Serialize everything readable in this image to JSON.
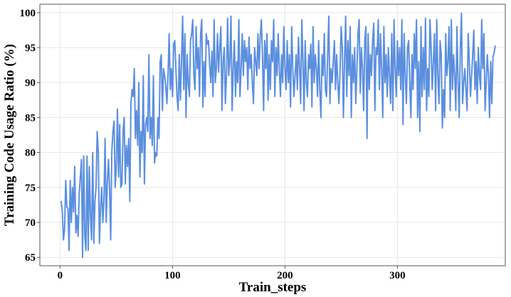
{
  "chart_data": {
    "type": "line",
    "title": "",
    "xlabel": "Train_steps",
    "ylabel": "Training Code Usage Ratio (%)",
    "xlim": [
      -18,
      396
    ],
    "ylim": [
      63.8,
      101.2
    ],
    "grid": true,
    "legend": "none",
    "x_ticks": [
      0,
      100,
      200,
      300
    ],
    "x_tick_labels": [
      "0",
      "100",
      "200",
      "300"
    ],
    "y_ticks": [
      65,
      70,
      75,
      80,
      85,
      90,
      95,
      100
    ],
    "y_tick_labels": [
      "65",
      "70",
      "75",
      "80",
      "85",
      "90",
      "95",
      "100"
    ],
    "series": [
      {
        "color": "#5b8fde",
        "x_start": 1,
        "x_step": 1,
        "y": [
          73.0,
          71.5,
          67.5,
          69.0,
          76.0,
          72.2,
          72.0,
          66.0,
          76.0,
          70.0,
          75.0,
          71.5,
          78.0,
          68.5,
          71.0,
          68.0,
          74.0,
          76.5,
          79.0,
          65.0,
          79.5,
          68.0,
          66.0,
          79.5,
          66.0,
          78.0,
          71.0,
          67.5,
          80.0,
          67.0,
          73.0,
          75.0,
          83.0,
          80.0,
          67.0,
          72.0,
          75.0,
          70.0,
          73.0,
          82.0,
          70.0,
          75.5,
          79.0,
          75.0,
          67.5,
          80.0,
          83.0,
          84.5,
          75.0,
          78.0,
          86.2,
          76.5,
          84.0,
          75.0,
          75.5,
          83.0,
          85.0,
          75.5,
          81.0,
          78.0,
          82.0,
          73.0,
          87.0,
          89.0,
          88.0,
          92.0,
          82.0,
          86.0,
          81.0,
          90.0,
          76.5,
          83.0,
          80.0,
          91.0,
          75.5,
          84.0,
          85.0,
          83.0,
          94.0,
          82.0,
          85.0,
          81.0,
          91.0,
          78.5,
          80.0,
          79.5,
          85.0,
          82.0,
          93.0,
          94.0,
          86.0,
          92.0,
          91.0,
          89.5,
          87.0,
          91.0,
          97.0,
          89.0,
          92.0,
          88.0,
          95.5,
          96.0,
          92.0,
          88.0,
          86.0,
          94.0,
          87.5,
          93.0,
          99.5,
          89.0,
          97.0,
          85.0,
          94.0,
          90.0,
          88.0,
          96.0,
          97.0,
          99.0,
          91.0,
          89.0,
          98.0,
          92.0,
          95.0,
          88.0,
          97.0,
          99.0,
          86.5,
          93.0,
          88.0,
          97.0,
          95.5,
          96.0,
          92.5,
          90.0,
          94.5,
          88.0,
          99.0,
          90.0,
          92.0,
          97.0,
          91.5,
          95.0,
          98.0,
          86.0,
          93.0,
          95.0,
          87.0,
          91.0,
          99.2,
          91.0,
          93.0,
          99.5,
          86.0,
          92.0,
          96.0,
          88.0,
          93.0,
          90.0,
          99.0,
          88.0,
          92.0,
          97.0,
          91.0,
          96.0,
          93.0,
          95.0,
          89.0,
          96.5,
          92.0,
          94.0,
          90.0,
          87.0,
          95.0,
          93.0,
          91.0,
          97.0,
          92.0,
          96.5,
          99.0,
          94.0,
          86.0,
          96.0,
          92.0,
          97.0,
          87.5,
          94.0,
          89.0,
          96.0,
          93.0,
          99.0,
          88.0,
          95.0,
          91.0,
          97.0,
          92.0,
          88.0,
          94.0,
          90.0,
          98.0,
          92.0,
          89.0,
          96.0,
          90.0,
          94.0,
          86.5,
          98.0,
          92.0,
          88.0,
          91.0,
          94.0,
          89.0,
          96.5,
          92.0,
          87.0,
          99.0,
          93.0,
          86.0,
          96.0,
          90.0,
          88.0,
          94.0,
          92.0,
          95.5,
          86.5,
          98.0,
          90.0,
          94.0,
          92.0,
          88.0,
          96.0,
          89.0,
          85.0,
          94.0,
          91.0,
          97.0,
          89.0,
          88.0,
          94.0,
          99.5,
          87.0,
          92.0,
          90.0,
          93.0,
          96.0,
          89.0,
          94.0,
          90.0,
          87.0,
          91.5,
          98.0,
          95.0,
          85.0,
          93.0,
          99.5,
          88.0,
          96.0,
          91.0,
          98.0,
          85.0,
          94.0,
          90.0,
          95.0,
          87.0,
          92.0,
          97.0,
          99.0,
          88.5,
          95.0,
          92.0,
          86.0,
          96.0,
          98.0,
          82.0,
          97.0,
          89.0,
          94.0,
          91.0,
          96.0,
          98.5,
          86.0,
          95.0,
          94.0,
          99.0,
          89.0,
          97.0,
          92.0,
          85.0,
          98.0,
          90.0,
          94.0,
          88.0,
          95.0,
          91.0,
          87.0,
          97.0,
          86.0,
          99.0,
          92.0,
          88.0,
          96.0,
          91.0,
          95.0,
          89.0,
          99.0,
          84.0,
          97.0,
          91.0,
          87.0,
          95.0,
          96.0,
          90.0,
          85.0,
          94.0,
          89.0,
          97.0,
          92.0,
          99.0,
          85.0,
          93.0,
          83.0,
          98.0,
          88.0,
          95.0,
          89.0,
          99.2,
          86.0,
          92.0,
          88.0,
          99.0,
          95.0,
          89.0,
          93.0,
          97.0,
          86.0,
          99.0,
          91.0,
          87.0,
          96.0,
          94.0,
          83.5,
          89.0,
          85.0,
          97.0,
          91.0,
          93.0,
          98.0,
          86.0,
          99.0,
          89.0,
          94.0,
          91.0,
          86.0,
          98.0,
          90.0,
          85.0,
          95.0,
          99.9,
          87.0,
          90.0,
          92.0,
          89.0,
          86.0,
          97.0,
          93.0,
          88.0,
          91.0,
          94.0,
          97.5,
          89.0,
          93.0,
          87.0,
          95.0,
          91.0,
          89.0,
          99.0,
          92.0,
          97.0,
          86.0,
          90.0,
          94.0,
          91.0,
          85.0,
          93.0,
          87.0,
          93.7,
          94.2,
          95.2
        ]
      }
    ]
  }
}
